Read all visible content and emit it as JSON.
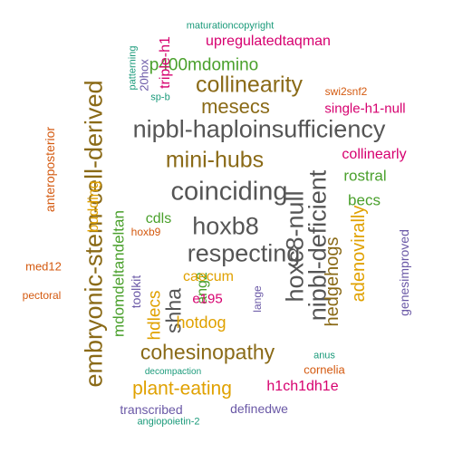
{
  "palette": {
    "gray": "#555555",
    "brown": "#8a6a17",
    "green": "#4aa02c",
    "magenta": "#d6006f",
    "orange": "#d45a10",
    "gold": "#e0a100",
    "purple": "#6a58a6",
    "teal": "#1a9a7a"
  },
  "words": [
    {
      "text": "nipbl-haploinsufficiency",
      "color": "#555555"
    },
    {
      "text": "coinciding",
      "color": "#555555"
    },
    {
      "text": "hoxb8",
      "color": "#555555"
    },
    {
      "text": "respecting",
      "color": "#555555"
    },
    {
      "text": "embryonic-stem-cell-derived",
      "color": "#8a6a17"
    },
    {
      "text": "hoxc8-null",
      "color": "#555555"
    },
    {
      "text": "nipbl-deficient",
      "color": "#555555"
    },
    {
      "text": "mini-hubs",
      "color": "#8a6a17"
    },
    {
      "text": "collinearity",
      "color": "#8a6a17"
    },
    {
      "text": "cohesinopathy",
      "color": "#8a6a17"
    },
    {
      "text": "mesecs",
      "color": "#8a6a17"
    },
    {
      "text": "p400mdomino",
      "color": "#4aa02c"
    },
    {
      "text": "shha",
      "color": "#555555"
    },
    {
      "text": "plant-eating",
      "color": "#e0a100"
    },
    {
      "text": "hedgehogs",
      "color": "#8a6a17"
    },
    {
      "text": "adenovirally",
      "color": "#e0a100"
    },
    {
      "text": "mdomdeltandeltan",
      "color": "#4aa02c"
    },
    {
      "text": "hotdog",
      "color": "#e0a100"
    },
    {
      "text": "hdlecs",
      "color": "#e0a100"
    },
    {
      "text": "upregulatedtaqman",
      "color": "#d6006f"
    },
    {
      "text": "collinearly",
      "color": "#d6006f"
    },
    {
      "text": "rostral",
      "color": "#4aa02c"
    },
    {
      "text": "becs",
      "color": "#4aa02c"
    },
    {
      "text": "budding",
      "color": "#e0a100"
    },
    {
      "text": "h1ch1dh1e",
      "color": "#d6006f"
    },
    {
      "text": "triple-h1",
      "color": "#d6006f"
    },
    {
      "text": "single-h1-null",
      "color": "#d6006f"
    },
    {
      "text": "ang2",
      "color": "#4aa02c"
    },
    {
      "text": "e195",
      "color": "#d6006f"
    },
    {
      "text": "cdls",
      "color": "#4aa02c"
    },
    {
      "text": "caecum",
      "color": "#e0a100"
    },
    {
      "text": "genesimproved",
      "color": "#6a58a6"
    },
    {
      "text": "toolkit",
      "color": "#6a58a6"
    },
    {
      "text": "transcribed",
      "color": "#6a58a6"
    },
    {
      "text": "definedwe",
      "color": "#6a58a6"
    },
    {
      "text": "cornelia",
      "color": "#d45a10"
    },
    {
      "text": "swi2snf2",
      "color": "#d45a10"
    },
    {
      "text": "anteroposterior",
      "color": "#d45a10"
    },
    {
      "text": "med12",
      "color": "#d45a10"
    },
    {
      "text": "pectoral",
      "color": "#d45a10"
    },
    {
      "text": "20hox",
      "color": "#6a58a6"
    },
    {
      "text": "patterning",
      "color": "#1a9a7a"
    },
    {
      "text": "sp-b",
      "color": "#1a9a7a"
    },
    {
      "text": "hoxb9",
      "color": "#d45a10"
    },
    {
      "text": "lange",
      "color": "#6a58a6"
    },
    {
      "text": "maturationcopyright",
      "color": "#1a9a7a"
    },
    {
      "text": "anus",
      "color": "#1a9a7a"
    },
    {
      "text": "decompaction",
      "color": "#1a9a7a"
    },
    {
      "text": "angiopoietin-2",
      "color": "#1a9a7a"
    }
  ]
}
